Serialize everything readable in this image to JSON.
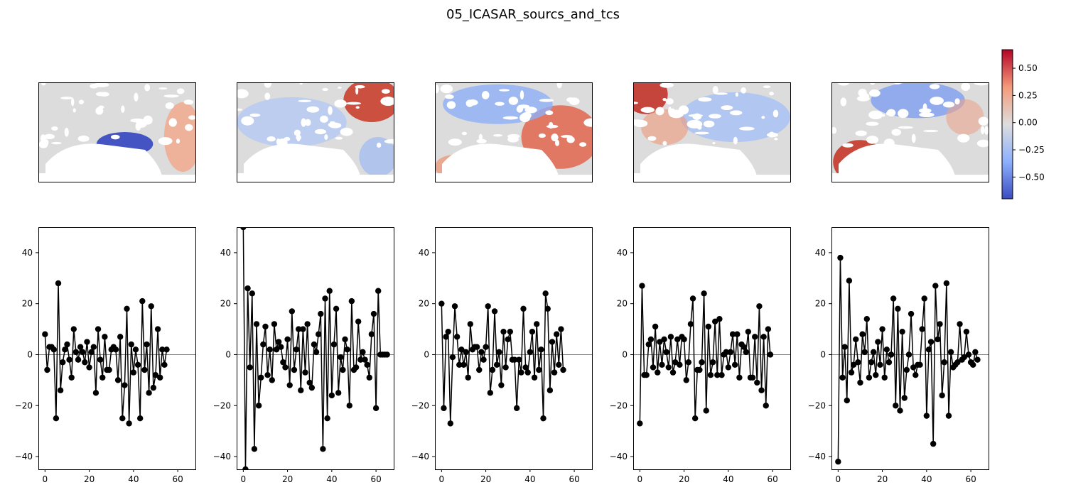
{
  "figure": {
    "title": "05_ICASAR_sourcs_and_tcs"
  },
  "colorbar": {
    "ticks": [
      0.5,
      0.25,
      0.0,
      -0.25,
      -0.5
    ],
    "tick_labels": [
      "0.50",
      "0.25",
      "0.00",
      "−0.25",
      "−0.50"
    ],
    "range": [
      -0.7,
      0.67
    ],
    "colormap": "coolwarm",
    "colors": {
      "low": "#3b4cc0",
      "mid": "#dddddd",
      "high": "#b40426"
    }
  },
  "chart_data": [
    {
      "type": "heatmap",
      "name": "",
      "description_colors": [
        "neutral",
        "blue-centre",
        "red-east"
      ]
    },
    {
      "type": "heatmap",
      "name": "",
      "description_colors": [
        "blue-west",
        "red-northeast"
      ]
    },
    {
      "type": "heatmap",
      "name": "",
      "description_colors": [
        "blue-north",
        "red-east"
      ]
    },
    {
      "type": "heatmap",
      "name": "",
      "description_colors": [
        "red-northwest",
        "blue-east"
      ]
    },
    {
      "type": "heatmap",
      "name": "",
      "description_colors": [
        "red-southwest",
        "blue-north"
      ]
    },
    {
      "type": "line",
      "xlim": [
        -3,
        68
      ],
      "ylim": [
        -45,
        50
      ],
      "xticks": [
        0,
        20,
        40,
        60
      ],
      "yticks": [
        -40,
        -20,
        0,
        20,
        40
      ],
      "xtick_labels": [
        "0",
        "20",
        "40",
        "60"
      ],
      "ytick_labels": [
        "−40",
        "−20",
        "0",
        "20",
        "40"
      ],
      "series": [
        {
          "values": [
            8,
            -6,
            3,
            3,
            2,
            -25,
            28,
            -14,
            -3,
            2,
            4,
            -2,
            -9,
            10,
            1,
            -2,
            3,
            1,
            -3,
            5,
            -5,
            1,
            3,
            -15,
            10,
            -2,
            -9,
            7,
            -6,
            -6,
            2,
            3,
            2,
            -10,
            7,
            -25,
            -12,
            18,
            -27,
            4,
            -7,
            2,
            -4,
            -25,
            21,
            -6,
            4,
            -15,
            19,
            -13,
            -8,
            10,
            -9,
            2,
            -4,
            2
          ]
        }
      ],
      "grid": false
    },
    {
      "type": "line",
      "xlim": [
        -3,
        68
      ],
      "ylim": [
        -45,
        50
      ],
      "xticks": [
        0,
        20,
        40,
        60
      ],
      "yticks": [
        -40,
        -20,
        0,
        20,
        40
      ],
      "xtick_labels": [
        "0",
        "20",
        "40",
        "60"
      ],
      "ytick_labels": [
        "−40",
        "−20",
        "0",
        "20",
        "40"
      ],
      "series": [
        {
          "values": [
            50,
            -45,
            26,
            -5,
            24,
            -37,
            12,
            -20,
            -9,
            4,
            11,
            -8,
            2,
            -10,
            12,
            2,
            5,
            3,
            -3,
            -5,
            6,
            -12,
            17,
            -6,
            2,
            10,
            -14,
            10,
            -7,
            12,
            -11,
            -13,
            4,
            1,
            8,
            16,
            -37,
            22,
            -25,
            25,
            -16,
            4,
            18,
            -15,
            -1,
            -6,
            6,
            2,
            -20,
            21,
            -6,
            -5,
            13,
            -2,
            1,
            -2,
            -4,
            -9,
            8,
            16,
            -21,
            25,
            0,
            0,
            0,
            0
          ]
        }
      ],
      "grid": false
    },
    {
      "type": "line",
      "xlim": [
        -3,
        68
      ],
      "ylim": [
        -45,
        50
      ],
      "xticks": [
        0,
        20,
        40,
        60
      ],
      "yticks": [
        -40,
        -20,
        0,
        20,
        40
      ],
      "xtick_labels": [
        "0",
        "20",
        "40",
        "60"
      ],
      "ytick_labels": [
        "−40",
        "−20",
        "0",
        "20",
        "40"
      ],
      "series": [
        {
          "values": [
            20,
            -21,
            7,
            9,
            -27,
            -1,
            19,
            7,
            -4,
            2,
            -4,
            1,
            -9,
            12,
            2,
            3,
            3,
            -6,
            1,
            -2,
            3,
            19,
            -15,
            -6,
            17,
            -4,
            1,
            -12,
            9,
            -5,
            6,
            9,
            -2,
            -2,
            -21,
            -2,
            -7,
            18,
            -5,
            -7,
            1,
            9,
            -9,
            12,
            -6,
            2,
            -25,
            24,
            18,
            -14,
            5,
            -7,
            8,
            -4,
            10,
            -6
          ]
        }
      ],
      "grid": false
    },
    {
      "type": "line",
      "xlim": [
        -3,
        68
      ],
      "ylim": [
        -45,
        50
      ],
      "xticks": [
        0,
        20,
        40,
        60
      ],
      "yticks": [
        -40,
        -20,
        0,
        20,
        40
      ],
      "xtick_labels": [
        "0",
        "20",
        "40",
        "60"
      ],
      "ytick_labels": [
        "−40",
        "−20",
        "0",
        "20",
        "40"
      ],
      "series": [
        {
          "values": [
            -27,
            27,
            -8,
            -8,
            4,
            6,
            -5,
            11,
            -7,
            5,
            -4,
            6,
            1,
            -5,
            7,
            -7,
            -3,
            6,
            -4,
            7,
            6,
            -10,
            -3,
            12,
            22,
            -25,
            -6,
            -6,
            -3,
            24,
            -22,
            11,
            -8,
            -3,
            13,
            -8,
            14,
            -8,
            0,
            1,
            -5,
            1,
            8,
            -4,
            8,
            -9,
            4,
            3,
            1,
            9,
            -9,
            -9,
            7,
            -11,
            19,
            -14,
            7,
            -20,
            10,
            0
          ]
        }
      ],
      "grid": false
    },
    {
      "type": "line",
      "xlim": [
        -3,
        68
      ],
      "ylim": [
        -45,
        50
      ],
      "xticks": [
        0,
        20,
        40,
        60
      ],
      "yticks": [
        -40,
        -20,
        0,
        20,
        40
      ],
      "xtick_labels": [
        "0",
        "20",
        "40",
        "60"
      ],
      "ytick_labels": [
        "−40",
        "−20",
        "0",
        "20",
        "40"
      ],
      "series": [
        {
          "values": [
            -42,
            38,
            -9,
            3,
            -18,
            29,
            -7,
            -4,
            6,
            -3,
            -11,
            8,
            1,
            14,
            -9,
            -3,
            1,
            -8,
            5,
            -4,
            10,
            -9,
            2,
            -3,
            0,
            22,
            -20,
            18,
            -22,
            9,
            -17,
            -6,
            0,
            16,
            -5,
            -8,
            -4,
            -4,
            10,
            22,
            -24,
            2,
            5,
            -35,
            27,
            6,
            12,
            -16,
            -3,
            28,
            -24,
            1,
            -5,
            -4,
            -3,
            12,
            -2,
            -1,
            9,
            0,
            -3,
            -4,
            1,
            -2
          ]
        }
      ],
      "grid": false
    }
  ]
}
